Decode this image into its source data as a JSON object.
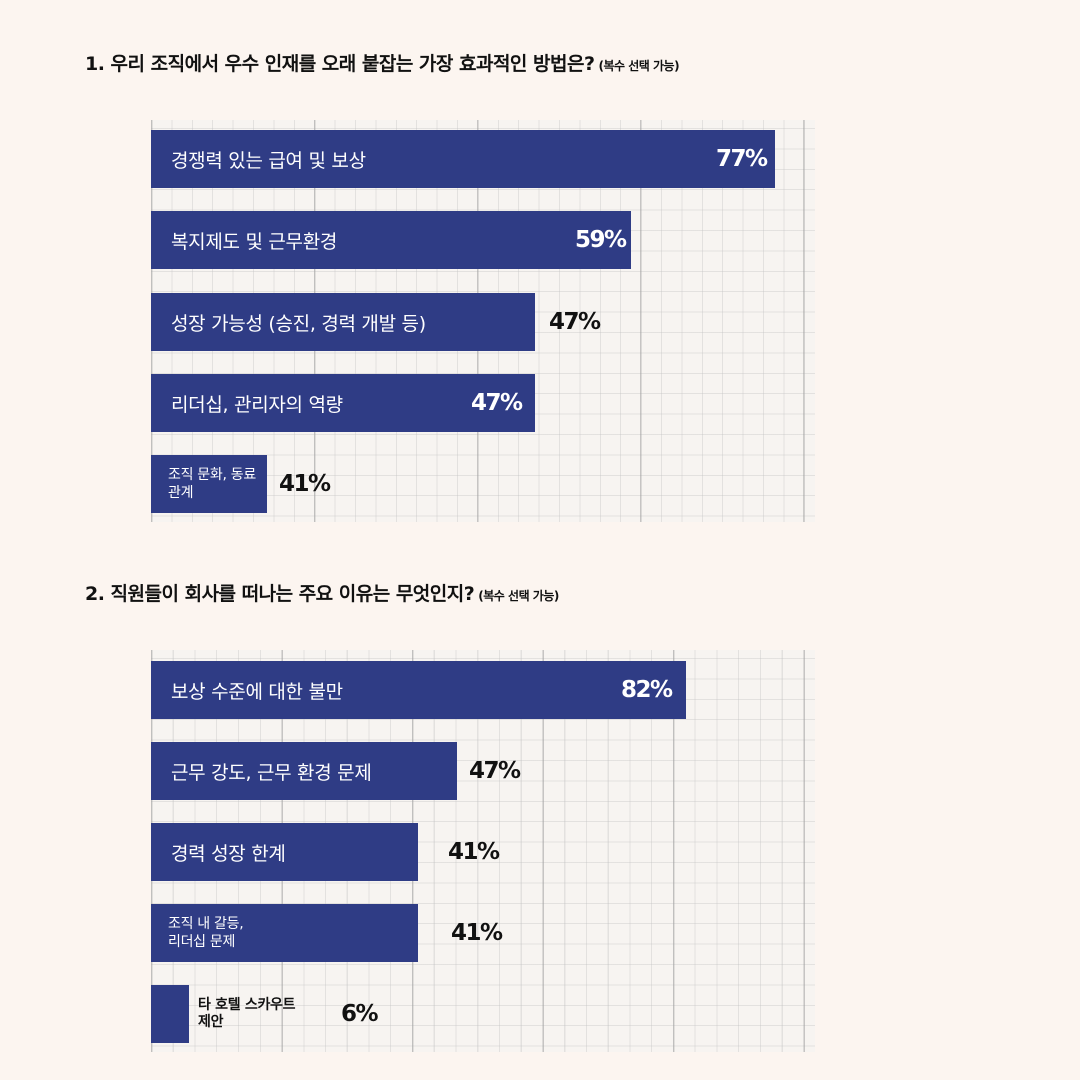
{
  "chart_data": [
    {
      "type": "bar",
      "orientation": "horizontal",
      "title": "1. 우리 조직에서 우수 인재를 오래 붙잡는 가장 효과적인 방법은?",
      "subtitle": "(복수 선택 가능)",
      "categories": [
        "경쟁력 있는 급여 및 보상",
        "복지제도 및 근무환경",
        "성장 가능성 (승진, 경력 개발 등)",
        "리더십, 관리자의 역량",
        "조직 문화, 동료 관계"
      ],
      "values": [
        77,
        59,
        47,
        47,
        41
      ],
      "value_labels": [
        "77%",
        "59%",
        "47%",
        "47%",
        "41%"
      ],
      "grid": true,
      "color": "#2f3c85"
    },
    {
      "type": "bar",
      "orientation": "horizontal",
      "title": "2. 직원들이 회사를 떠나는 주요 이유는 무엇인지?",
      "subtitle": "(복수 선택 가능)",
      "categories": [
        "보상 수준에 대한 불만",
        "근무 강도, 근무 환경 문제",
        "경력 성장 한계",
        "조직 내 갈등, 리더십 문제",
        "타 호텔 스카우트 제안"
      ],
      "values": [
        82,
        47,
        41,
        41,
        6
      ],
      "value_labels": [
        "82%",
        "47%",
        "41%",
        "41%",
        "6%"
      ],
      "grid": true,
      "color": "#2f3c85"
    }
  ]
}
